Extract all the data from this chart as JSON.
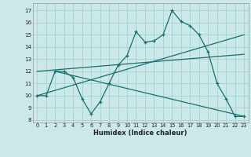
{
  "xlabel": "Humidex (Indice chaleur)",
  "background_color": "#cce9e9",
  "grid_color": "#aad4d4",
  "line_color": "#1a6e6e",
  "xlim": [
    -0.5,
    23.5
  ],
  "ylim": [
    7.8,
    17.6
  ],
  "yticks": [
    8,
    9,
    10,
    11,
    12,
    13,
    14,
    15,
    16,
    17
  ],
  "xticks": [
    0,
    1,
    2,
    3,
    4,
    5,
    6,
    7,
    8,
    9,
    10,
    11,
    12,
    13,
    14,
    15,
    16,
    17,
    18,
    19,
    20,
    21,
    22,
    23
  ],
  "line1_x": [
    0,
    1,
    2,
    3,
    4,
    5,
    6,
    7,
    8,
    9,
    10,
    11,
    12,
    13,
    14,
    15,
    16,
    17,
    18,
    19,
    20,
    21,
    22,
    23
  ],
  "line1_y": [
    10,
    10,
    12,
    12,
    11.5,
    9.75,
    8.5,
    9.5,
    11,
    12.5,
    13.3,
    15.25,
    14.4,
    14.5,
    15.0,
    17.0,
    16.1,
    15.75,
    15.0,
    13.6,
    11.0,
    9.75,
    8.3,
    8.3
  ],
  "line2_x": [
    0,
    23
  ],
  "line2_y": [
    10.0,
    15.0
  ],
  "line3_x": [
    0,
    23
  ],
  "line3_y": [
    12.0,
    13.4
  ],
  "line4_x": [
    2,
    23
  ],
  "line4_y": [
    12.0,
    8.3
  ]
}
